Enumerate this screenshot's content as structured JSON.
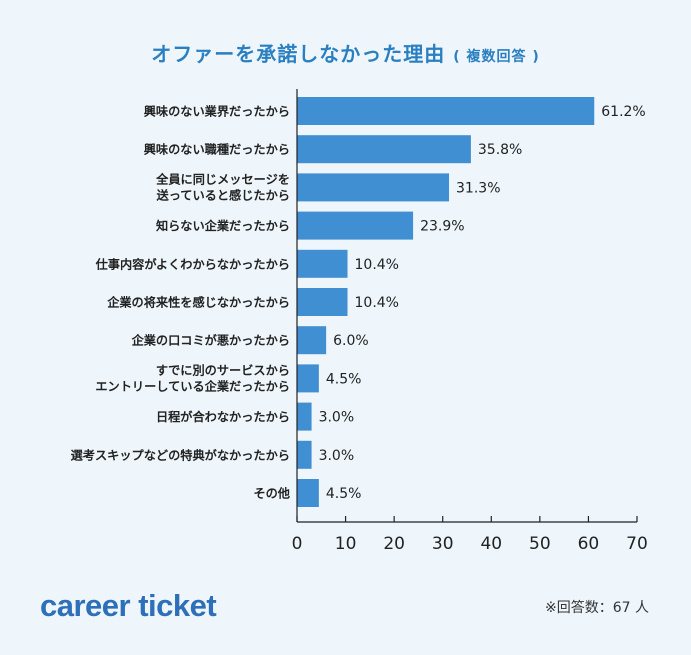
{
  "title": {
    "main": "オファーを承諾しなかった理由",
    "note": "( 複数回答 )"
  },
  "chart_data": {
    "type": "bar",
    "orientation": "horizontal",
    "categories": [
      [
        "興味のない業界だったから"
      ],
      [
        "興味のない職種だったから"
      ],
      [
        "全員に同じメッセージを",
        "送っていると感じたから"
      ],
      [
        "知らない企業だったから"
      ],
      [
        "仕事内容がよくわからなかったから"
      ],
      [
        "企業の将来性を感じなかったから"
      ],
      [
        "企業の口コミが悪かったから"
      ],
      [
        "すでに別のサービスから",
        "エントリーしている企業だったから"
      ],
      [
        "日程が合わなかったから"
      ],
      [
        "選考スキップなどの特典がなかったから"
      ],
      [
        "その他"
      ]
    ],
    "values": [
      61.2,
      35.8,
      31.3,
      23.9,
      10.4,
      10.4,
      6.0,
      4.5,
      3.0,
      3.0,
      4.5
    ],
    "value_labels": [
      "61.2%",
      "35.8%",
      "31.3%",
      "23.9%",
      "10.4%",
      "10.4%",
      "6.0%",
      "4.5%",
      "3.0%",
      "3.0%",
      "4.5%"
    ],
    "xlim": [
      0,
      70
    ],
    "xticks": [
      0,
      10,
      20,
      30,
      40,
      50,
      60,
      70
    ],
    "bar_color": "#3f8fd2",
    "grid": false
  },
  "logo": "career ticket",
  "footnote": "※回答数：67 人"
}
